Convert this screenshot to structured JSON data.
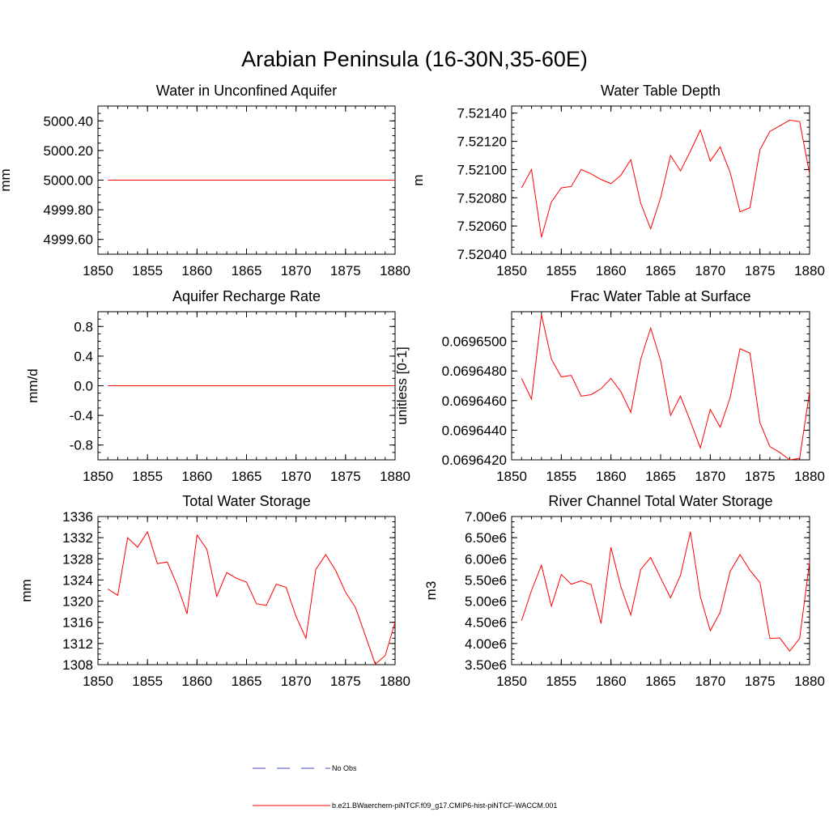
{
  "figure": {
    "title": "Arabian Peninsula (16-30N,35-60E)"
  },
  "legend": {
    "entries": [
      {
        "label": "No Obs",
        "color": "#3b4cc0",
        "dash": "dashed"
      },
      {
        "label": "b.e21.BWaerchem-piNTCF.f09_g17.CMIP6-hist-piNTCF-WACCM.001",
        "color": "#ff0000",
        "dash": "solid"
      }
    ]
  },
  "chart_data": [
    {
      "type": "line",
      "title": "Water in Unconfined Aquifer",
      "ylabel": "mm",
      "xlim": [
        1850,
        1880
      ],
      "ylim": [
        4999.5,
        5000.5
      ],
      "xticks": [
        1850,
        1855,
        1860,
        1865,
        1870,
        1875,
        1880
      ],
      "yticks": [
        4999.6,
        4999.8,
        5000.0,
        5000.2,
        5000.4
      ],
      "yticklabels": [
        "4999.60",
        "4999.80",
        "5000.00",
        "5000.20",
        "5000.40"
      ],
      "series": [
        {
          "color": "#ff0000",
          "x": [
            1851,
            1852,
            1853,
            1854,
            1855,
            1856,
            1857,
            1858,
            1859,
            1860,
            1861,
            1862,
            1863,
            1864,
            1865,
            1866,
            1867,
            1868,
            1869,
            1870,
            1871,
            1872,
            1873,
            1874,
            1875,
            1876,
            1877,
            1878,
            1879,
            1880
          ],
          "y": [
            5000.0,
            5000.0,
            5000.0,
            5000.0,
            5000.0,
            5000.0,
            5000.0,
            5000.0,
            5000.0,
            5000.0,
            5000.0,
            5000.0,
            5000.0,
            5000.0,
            5000.0,
            5000.0,
            5000.0,
            5000.0,
            5000.0,
            5000.0,
            5000.0,
            5000.0,
            5000.0,
            5000.0,
            5000.0,
            5000.0,
            5000.0,
            5000.0,
            5000.0,
            5000.0
          ]
        }
      ]
    },
    {
      "type": "line",
      "title": "Water Table Depth",
      "ylabel": "m",
      "xlim": [
        1850,
        1880
      ],
      "ylim": [
        7.5204,
        7.52145
      ],
      "xticks": [
        1850,
        1855,
        1860,
        1865,
        1870,
        1875,
        1880
      ],
      "yticks": [
        7.5204,
        7.5206,
        7.5208,
        7.521,
        7.5212,
        7.5214
      ],
      "yticklabels": [
        "7.52040",
        "7.52060",
        "7.52080",
        "7.52100",
        "7.52120",
        "7.52140"
      ],
      "series": [
        {
          "color": "#ff0000",
          "x": [
            1851,
            1852,
            1853,
            1854,
            1855,
            1856,
            1857,
            1858,
            1859,
            1860,
            1861,
            1862,
            1863,
            1864,
            1865,
            1866,
            1867,
            1868,
            1869,
            1870,
            1871,
            1872,
            1873,
            1874,
            1875,
            1876,
            1877,
            1878,
            1879,
            1880
          ],
          "y": [
            7.52087,
            7.521,
            7.52052,
            7.52077,
            7.52087,
            7.52088,
            7.521,
            7.52097,
            7.52093,
            7.5209,
            7.52096,
            7.52107,
            7.52076,
            7.52058,
            7.5208,
            7.5211,
            7.52099,
            7.52113,
            7.52128,
            7.52106,
            7.52116,
            7.52098,
            7.5207,
            7.52073,
            7.52114,
            7.52127,
            7.52131,
            7.52135,
            7.52134,
            7.52097
          ]
        }
      ]
    },
    {
      "type": "line",
      "title": "Aquifer Recharge Rate",
      "ylabel": "mm/d",
      "xlim": [
        1850,
        1880
      ],
      "ylim": [
        -1.0,
        1.0
      ],
      "xticks": [
        1850,
        1855,
        1860,
        1865,
        1870,
        1875,
        1880
      ],
      "yticks": [
        -0.8,
        -0.4,
        0.0,
        0.4,
        0.8
      ],
      "yticklabels": [
        "-0.8",
        "-0.4",
        "0.0",
        "0.4",
        "0.8"
      ],
      "series": [
        {
          "color": "#ff0000",
          "x": [
            1851,
            1852,
            1853,
            1854,
            1855,
            1856,
            1857,
            1858,
            1859,
            1860,
            1861,
            1862,
            1863,
            1864,
            1865,
            1866,
            1867,
            1868,
            1869,
            1870,
            1871,
            1872,
            1873,
            1874,
            1875,
            1876,
            1877,
            1878,
            1879,
            1880
          ],
          "y": [
            0,
            0,
            0,
            0,
            0,
            0,
            0,
            0,
            0,
            0,
            0,
            0,
            0,
            0,
            0,
            0,
            0,
            0,
            0,
            0,
            0,
            0,
            0,
            0,
            0,
            0,
            0,
            0,
            0,
            0
          ]
        }
      ]
    },
    {
      "type": "line",
      "title": "Frac Water Table at Surface",
      "ylabel": "unitless [0-1]",
      "xlim": [
        1850,
        1880
      ],
      "ylim": [
        0.069642,
        0.069652
      ],
      "xticks": [
        1850,
        1855,
        1860,
        1865,
        1870,
        1875,
        1880
      ],
      "yticks": [
        0.069642,
        0.069644,
        0.069646,
        0.069648,
        0.06965
      ],
      "yticklabels": [
        "0.0696420",
        "0.0696440",
        "0.0696460",
        "0.0696480",
        "0.0696500"
      ],
      "series": [
        {
          "color": "#ff0000",
          "x": [
            1851,
            1852,
            1853,
            1854,
            1855,
            1856,
            1857,
            1858,
            1859,
            1860,
            1861,
            1862,
            1863,
            1864,
            1865,
            1866,
            1867,
            1868,
            1869,
            1870,
            1871,
            1872,
            1873,
            1874,
            1875,
            1876,
            1877,
            1878,
            1879,
            1880
          ],
          "y": [
            0.0696475,
            0.0696461,
            0.0696518,
            0.0696488,
            0.0696476,
            0.0696477,
            0.0696463,
            0.0696464,
            0.0696468,
            0.0696475,
            0.0696466,
            0.0696452,
            0.0696488,
            0.0696509,
            0.0696487,
            0.069645,
            0.0696463,
            0.0696446,
            0.0696428,
            0.0696454,
            0.0696442,
            0.0696462,
            0.0696495,
            0.0696492,
            0.0696445,
            0.0696429,
            0.0696425,
            0.069642,
            0.0696421,
            0.0696466
          ]
        }
      ]
    },
    {
      "type": "line",
      "title": "Total Water Storage",
      "ylabel": "mm",
      "xlim": [
        1850,
        1880
      ],
      "ylim": [
        1308,
        1336
      ],
      "xticks": [
        1850,
        1855,
        1860,
        1865,
        1870,
        1875,
        1880
      ],
      "yticks": [
        1308,
        1312,
        1316,
        1320,
        1324,
        1328,
        1332,
        1336
      ],
      "yticklabels": [
        "1308",
        "1312",
        "1316",
        "1320",
        "1324",
        "1328",
        "1332",
        "1336"
      ],
      "series": [
        {
          "color": "#ff0000",
          "x": [
            1851,
            1852,
            1853,
            1854,
            1855,
            1856,
            1857,
            1858,
            1859,
            1860,
            1861,
            1862,
            1863,
            1864,
            1865,
            1866,
            1867,
            1868,
            1869,
            1870,
            1871,
            1872,
            1873,
            1874,
            1875,
            1876,
            1877,
            1878,
            1879,
            1880
          ],
          "y": [
            1322.3,
            1321.1,
            1332,
            1330.2,
            1333.1,
            1327.1,
            1327.4,
            1323,
            1317.6,
            1332.5,
            1329.8,
            1320.9,
            1325.4,
            1324.3,
            1323.6,
            1319.5,
            1319.2,
            1323.2,
            1322.6,
            1317.1,
            1313,
            1326,
            1328.8,
            1325.8,
            1321.7,
            1318.8,
            1313.5,
            1308.1,
            1309.7,
            1316
          ]
        }
      ]
    },
    {
      "type": "line",
      "title": "River Channel Total Water Storage",
      "ylabel": "m3",
      "xlim": [
        1850,
        1880
      ],
      "ylim": [
        3500000,
        7000000
      ],
      "xticks": [
        1850,
        1855,
        1860,
        1865,
        1870,
        1875,
        1880
      ],
      "yticks": [
        3500000,
        4000000,
        4500000,
        5000000,
        5500000,
        6000000,
        6500000,
        7000000
      ],
      "yticklabels": [
        "3.50e6",
        "4.00e6",
        "4.50e6",
        "5.00e6",
        "5.50e6",
        "6.00e6",
        "6.50e6",
        "7.00e6"
      ],
      "series": [
        {
          "color": "#ff0000",
          "x": [
            1851,
            1852,
            1853,
            1854,
            1855,
            1856,
            1857,
            1858,
            1859,
            1860,
            1861,
            1862,
            1863,
            1864,
            1865,
            1866,
            1867,
            1868,
            1869,
            1870,
            1871,
            1872,
            1873,
            1874,
            1875,
            1876,
            1877,
            1878,
            1879,
            1880
          ],
          "y": [
            4540000,
            5250000,
            5850000,
            4880000,
            5630000,
            5400000,
            5480000,
            5390000,
            4470000,
            6270000,
            5340000,
            4670000,
            5750000,
            6030000,
            5550000,
            5080000,
            5610000,
            6640000,
            5110000,
            4300000,
            4740000,
            5700000,
            6100000,
            5730000,
            5440000,
            4120000,
            4130000,
            3820000,
            4120000,
            5920000
          ]
        }
      ]
    }
  ]
}
